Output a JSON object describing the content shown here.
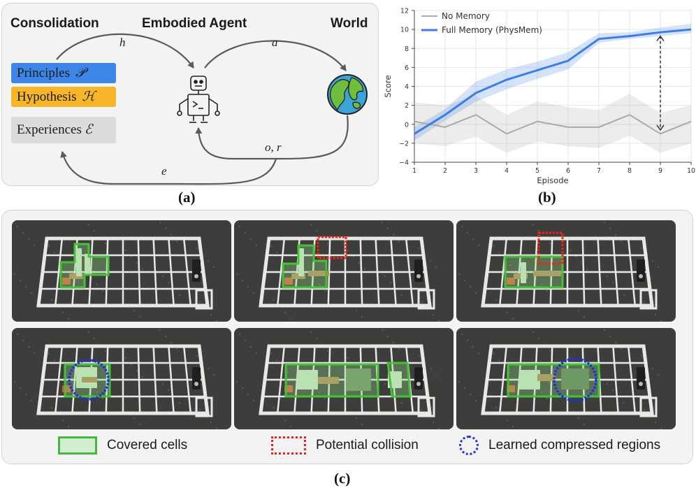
{
  "panel_a": {
    "caption": "(a)",
    "headers": {
      "consolidation": "Consolidation",
      "agent": "Embodied Agent",
      "world": "World"
    },
    "memory": [
      {
        "label": "Principles",
        "symbol": "𝒫",
        "color": "#3d86e8"
      },
      {
        "label": "Hypothesis",
        "symbol": "ℋ",
        "color": "#f7b52a"
      },
      {
        "label": "Experiences",
        "symbol": "ℰ",
        "color": "#dcdcdc"
      }
    ],
    "arrows": {
      "h": "h",
      "a": "a",
      "or": "o, r",
      "e": "e"
    },
    "icons": [
      "robot-icon",
      "globe-icon"
    ]
  },
  "panel_b": {
    "caption": "(b)",
    "chart_data": {
      "type": "line",
      "xlabel": "Episode",
      "ylabel": "Score",
      "xlim": [
        1,
        10
      ],
      "ylim": [
        -4,
        12
      ],
      "x": [
        1,
        2,
        3,
        4,
        5,
        6,
        7,
        8,
        9,
        10
      ],
      "xticks": [
        "1",
        "2",
        "3",
        "4",
        "5",
        "6",
        "7",
        "8",
        "9",
        "10"
      ],
      "yticks": [
        "−4",
        "−2",
        "0",
        "2",
        "4",
        "6",
        "8",
        "10",
        "12"
      ],
      "grid": true,
      "legend": "top-left",
      "series": [
        {
          "name": "No Memory",
          "color": "#a9a9a9",
          "values": [
            0.3,
            -0.3,
            1.0,
            -1.0,
            0.3,
            -0.3,
            -0.3,
            1.0,
            -1.0,
            0.3
          ],
          "lower": [
            -2.0,
            -2.3,
            -1.3,
            -3.0,
            -1.8,
            -2.3,
            -2.5,
            -1.2,
            -3.0,
            -2.0
          ],
          "upper": [
            2.3,
            2.0,
            3.0,
            1.0,
            2.4,
            1.8,
            1.5,
            3.2,
            1.2,
            2.0
          ]
        },
        {
          "name": "Full Memory (PhysMem)",
          "color": "#3d7ee6",
          "values": [
            -1.0,
            1.0,
            3.3,
            4.7,
            5.7,
            6.7,
            9.0,
            9.3,
            9.7,
            10.0
          ],
          "lower": [
            -1.7,
            0.4,
            2.4,
            3.7,
            4.8,
            5.8,
            8.6,
            9.0,
            9.3,
            9.6
          ],
          "upper": [
            -0.3,
            1.6,
            4.5,
            5.8,
            6.6,
            7.6,
            9.6,
            9.7,
            10.2,
            10.6
          ]
        }
      ]
    }
  },
  "panel_c": {
    "caption": "(c)",
    "legend": {
      "covered": "Covered cells",
      "collision": "Potential collision",
      "compressed": "Learned compressed regions"
    }
  }
}
